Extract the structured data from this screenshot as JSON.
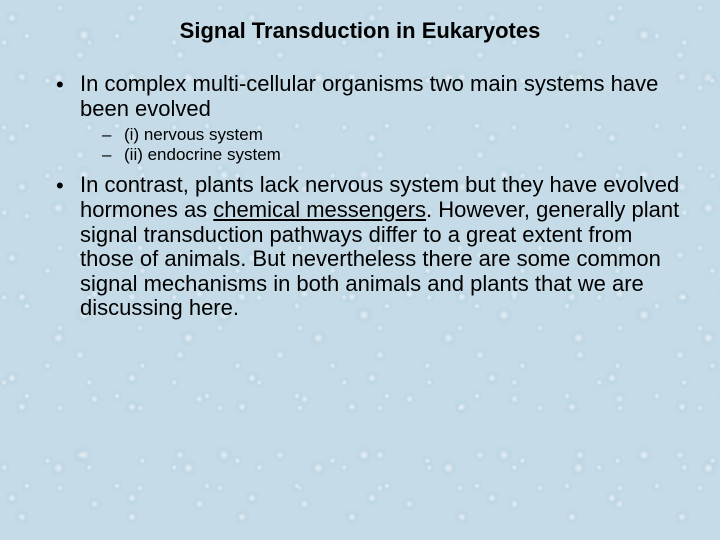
{
  "slide": {
    "title": "Signal Transduction in Eukaryotes",
    "title_fontsize": 22,
    "bullet1_fontsize": 22,
    "bullet2_fontsize": 17,
    "background_color": "#c5dce8",
    "text_color": "#000000",
    "bullets": [
      {
        "text": "In complex multi-cellular organisms two main systems have been evolved",
        "sub": [
          {
            "text": " (i) nervous system"
          },
          {
            "text": " (ii) endocrine system"
          }
        ]
      },
      {
        "pre": "In contrast, plants lack nervous system but they have evolved hormones as ",
        "underlined": "chemical messengers",
        "post": ". However, generally plant signal transduction pathways differ to a great extent from those of animals. But nevertheless there are some common signal mechanisms in both animals and plants that we are discussing here."
      }
    ]
  }
}
